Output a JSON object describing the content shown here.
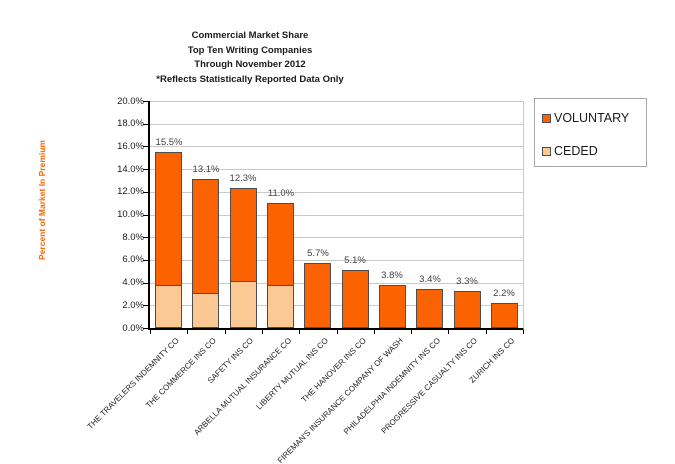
{
  "header": {
    "title_lines": [
      "Commercial Market Share",
      "Top Ten Writing Companies",
      "Through November 2012",
      "*Reflects Statistically Reported Data Only"
    ]
  },
  "chart_data": {
    "type": "bar",
    "stacked": true,
    "title": "Commercial Market Share / Top Ten Writing Companies / Through November 2012 / *Reflects Statistically Reported Data Only",
    "ylabel": "Percent of Market In Premium",
    "ylim": [
      0,
      20
    ],
    "ytick_step": 2,
    "ytick_suffix": "%",
    "grid": true,
    "legend_position": "top-right",
    "categories": [
      "THE TRAVELERS INDEMNITY CO",
      "THE COMMERCE INS CO",
      "SAFETY INS CO",
      "ARBELLA MUTUAL INSURANCE CO",
      "LIBERTY MUTUAL INS CO",
      "THE HANOVER INS CO",
      "FIREMAN'S INSURANCE COMPANY OF WASH",
      "PHILADELPHIA INDEMNITY INS CO",
      "PROGRESSIVE CASUALTY INS CO",
      "ZURICH INS CO"
    ],
    "series": [
      {
        "name": "VOLUNTARY",
        "color": "#FA6300",
        "values": [
          11.7,
          10.0,
          8.2,
          7.2,
          5.7,
          5.1,
          3.8,
          3.4,
          3.3,
          2.2
        ]
      },
      {
        "name": "CEDED",
        "color": "#FCC894",
        "values": [
          3.8,
          3.1,
          4.1,
          3.8,
          0,
          0,
          0,
          0,
          0,
          0
        ]
      }
    ],
    "totals": [
      15.5,
      13.1,
      12.3,
      11.0,
      5.7,
      5.1,
      3.8,
      3.4,
      3.3,
      2.2
    ],
    "total_labels": [
      "15.5%",
      "13.1%",
      "12.3%",
      "11.0%",
      "5.7%",
      "5.1%",
      "3.8%",
      "3.4%",
      "3.3%",
      "2.2%"
    ]
  },
  "colors": {
    "voluntary": "#FA6300",
    "ceded": "#FCC894",
    "bar_border": "#4D4D4D",
    "gridline": "#C9C9C9",
    "axis": "#000000",
    "axis_title": "#F96505",
    "data_label": "#3F3F3F",
    "legend_border": "#A8A8A8",
    "text": "#1A1A1A"
  }
}
